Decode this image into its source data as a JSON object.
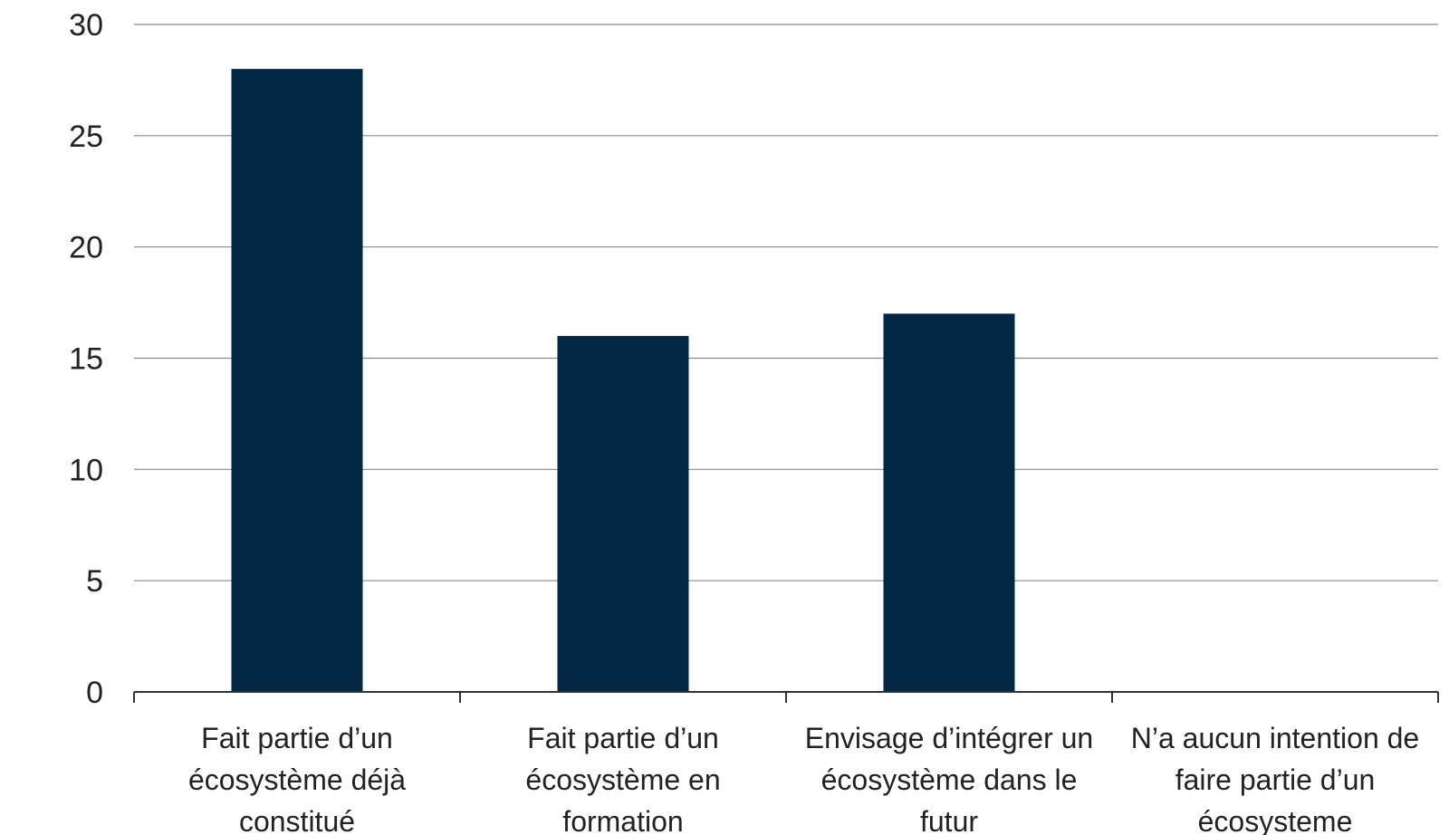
{
  "chart_data": {
    "type": "bar",
    "categories": [
      [
        "Fait partie d’un",
        "écosystème déjà",
        "constitué"
      ],
      [
        "Fait partie d’un",
        "écosystème en",
        "formation"
      ],
      [
        "Envisage d’intégrer un",
        "écosystème dans le",
        "futur"
      ],
      [
        "N’a aucun intention de",
        "faire partie d’un",
        "écosysteme"
      ]
    ],
    "values": [
      28,
      16,
      17,
      0
    ],
    "ylim": [
      0,
      30
    ],
    "yticks": [
      0,
      5,
      10,
      15,
      20,
      25,
      30
    ],
    "grid": true,
    "bar_color": "#022846"
  }
}
